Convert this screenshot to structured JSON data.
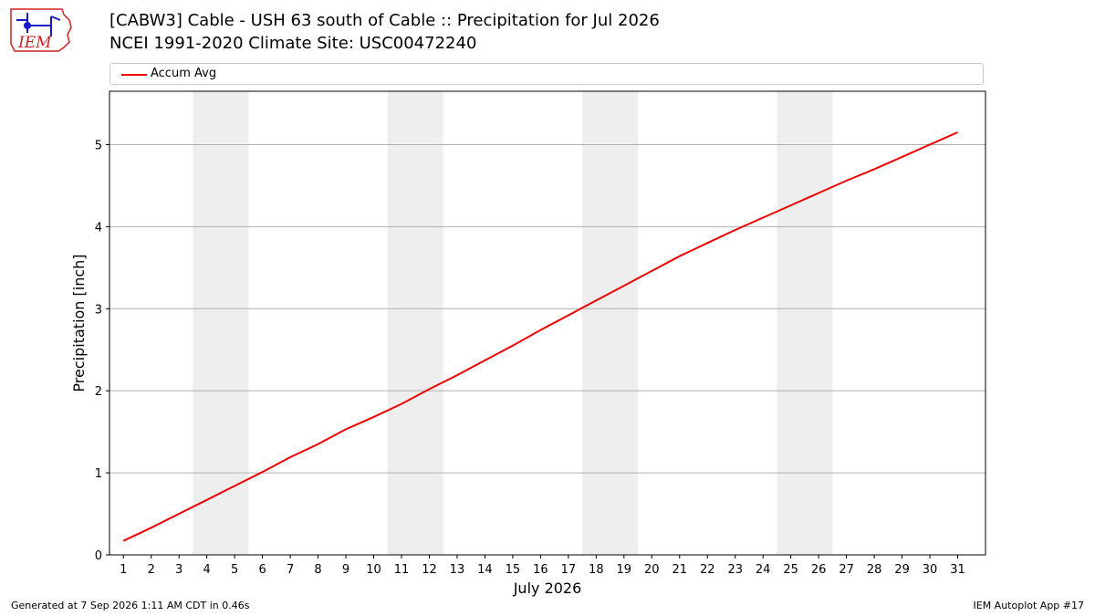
{
  "header": {
    "title_line1": "[CABW3] Cable - USH 63 south of Cable :: Precipitation for Jul 2026",
    "title_line2": "NCEI 1991-2020 Climate Site: USC00472240",
    "logo_text": "IEM"
  },
  "footer": {
    "generated": "Generated at 7 Sep 2026 1:11 AM CDT in 0.46s",
    "app": "IEM Autoplot App #17"
  },
  "colors": {
    "line": "#ee0000",
    "weekend_band": "#eeeeee",
    "grid": "#b0b0b0",
    "logo_red": "#cc2222",
    "logo_blue": "#1a1acc"
  },
  "chart_data": {
    "type": "line",
    "title": "[CABW3] Cable - USH 63 south of Cable :: Precipitation for Jul 2026",
    "subtitle": "NCEI 1991-2020 Climate Site: USC00472240",
    "xlabel": "July 2026",
    "ylabel": "Precipitation [inch]",
    "x": [
      1,
      2,
      3,
      4,
      5,
      6,
      7,
      8,
      9,
      10,
      11,
      12,
      13,
      14,
      15,
      16,
      17,
      18,
      19,
      20,
      21,
      22,
      23,
      24,
      25,
      26,
      27,
      28,
      29,
      30,
      31
    ],
    "xticks": [
      "1",
      "2",
      "3",
      "4",
      "5",
      "6",
      "7",
      "8",
      "9",
      "10",
      "11",
      "12",
      "13",
      "14",
      "15",
      "16",
      "17",
      "18",
      "19",
      "20",
      "21",
      "22",
      "23",
      "24",
      "25",
      "26",
      "27",
      "28",
      "29",
      "30",
      "31"
    ],
    "xlim": [
      0.5,
      32.0
    ],
    "ylim": [
      0,
      5.65
    ],
    "yticks": [
      0,
      1,
      2,
      3,
      4,
      5
    ],
    "grid": "horizontal",
    "legend_position": "top",
    "shaded_bands": [
      [
        3.5,
        5.5
      ],
      [
        10.5,
        12.5
      ],
      [
        17.5,
        19.5
      ],
      [
        24.5,
        26.5
      ]
    ],
    "series": [
      {
        "name": "Accum Avg",
        "values": [
          0.17,
          0.33,
          0.5,
          0.67,
          0.84,
          1.01,
          1.19,
          1.35,
          1.53,
          1.68,
          1.84,
          2.02,
          2.19,
          2.37,
          2.55,
          2.74,
          2.92,
          3.1,
          3.28,
          3.46,
          3.64,
          3.8,
          3.96,
          4.11,
          4.26,
          4.41,
          4.56,
          4.7,
          4.85,
          5.0,
          5.15
        ]
      }
    ]
  }
}
